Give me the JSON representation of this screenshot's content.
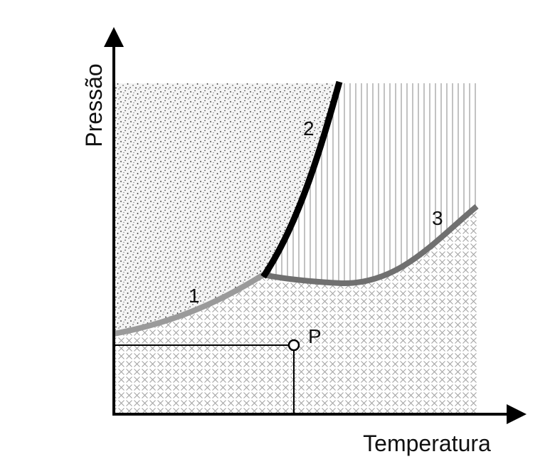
{
  "axes": {
    "x_label": "Temperatura",
    "y_label": "Pressão"
  },
  "curves": [
    {
      "label": "1",
      "color": "#9a9a9a"
    },
    {
      "label": "2",
      "color": "#000000"
    },
    {
      "label": "3",
      "color": "#707070"
    }
  ],
  "point": {
    "label": "P"
  },
  "colors": {
    "axis": "#000000",
    "region_fill_pattern": "#222222",
    "hatch_lines": "#9a9a9a",
    "cross_pattern": "#9a9a9a"
  }
}
